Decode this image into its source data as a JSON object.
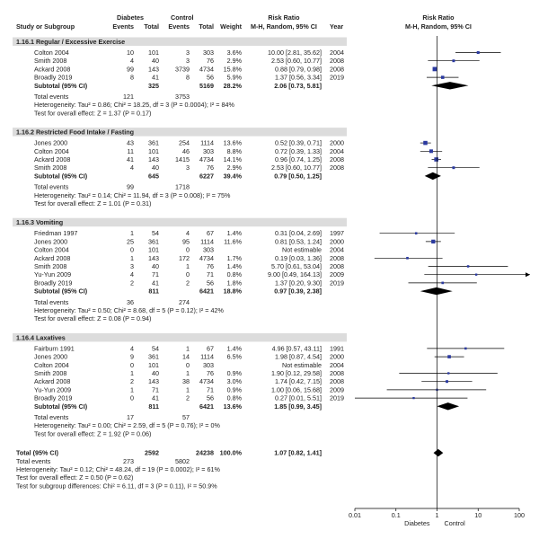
{
  "header": {
    "diabetes": "Diabetes",
    "control": "Control",
    "risk_ratio": "Risk Ratio",
    "risk_ratio_plot": "Risk Ratio",
    "study": "Study or Subgroup",
    "events1": "Events",
    "total1": "Total",
    "events2": "Events",
    "total2": "Total",
    "weight": "Weight",
    "method": "M-H, Random, 95% CI",
    "year": "Year",
    "method_plot": "M-H, Random, 95% CI"
  },
  "axis": {
    "ticks": [
      "0.01",
      "0.1",
      "1",
      "10",
      "100"
    ],
    "left_label": "Diabetes",
    "right_label": "Control"
  },
  "chart_data": {
    "type": "forest",
    "scale": "log",
    "xlim": [
      0.01,
      100
    ],
    "reference_line": 1,
    "subgroups": [
      {
        "title": "1.16.1 Regular / Excessive Exercise",
        "studies": [
          {
            "name": "Colton 2004",
            "e1": "10",
            "n1": "101",
            "e2": "3",
            "n2": "303",
            "weight": "3.6%",
            "ci_text": "10.00 [2.81, 35.62]",
            "year": "2004",
            "rr": 10.0,
            "lo": 2.81,
            "hi": 35.62
          },
          {
            "name": "Smith 2008",
            "e1": "4",
            "n1": "40",
            "e2": "3",
            "n2": "76",
            "weight": "2.9%",
            "ci_text": "2.53 [0.60, 10.77]",
            "year": "2008",
            "rr": 2.53,
            "lo": 0.6,
            "hi": 10.77
          },
          {
            "name": "Ackard 2008",
            "e1": "99",
            "n1": "143",
            "e2": "3739",
            "n2": "4734",
            "weight": "15.8%",
            "ci_text": "0.88 [0.79, 0.98]",
            "year": "2008",
            "rr": 0.88,
            "lo": 0.79,
            "hi": 0.98
          },
          {
            "name": "Broadly 2019",
            "e1": "8",
            "n1": "41",
            "e2": "8",
            "n2": "56",
            "weight": "5.9%",
            "ci_text": "1.37 [0.56, 3.34]",
            "year": "2019",
            "rr": 1.37,
            "lo": 0.56,
            "hi": 3.34
          }
        ],
        "subtotal": {
          "label": "Subtotal (95% CI)",
          "n1": "325",
          "n2": "5169",
          "weight": "28.2%",
          "ci_text": "2.06 [0.73, 5.81]",
          "rr": 2.06,
          "lo": 0.73,
          "hi": 5.81
        },
        "total_events": {
          "label": "Total events",
          "e1": "121",
          "e2": "3753"
        },
        "heterogeneity": "Heterogeneity: Tau² = 0.86; Chi² = 18.25, df = 3 (P = 0.0004); I² = 84%",
        "overall_effect": "Test for overall effect: Z = 1.37 (P = 0.17)"
      },
      {
        "title": "1.16.2 Restricted Food Intake / Fasting",
        "studies": [
          {
            "name": "Jones 2000",
            "e1": "43",
            "n1": "361",
            "e2": "254",
            "n2": "1114",
            "weight": "13.6%",
            "ci_text": "0.52 [0.39, 0.71]",
            "year": "2000",
            "rr": 0.52,
            "lo": 0.39,
            "hi": 0.71
          },
          {
            "name": "Colton 2004",
            "e1": "11",
            "n1": "101",
            "e2": "46",
            "n2": "303",
            "weight": "8.8%",
            "ci_text": "0.72 [0.39, 1.33]",
            "year": "2004",
            "rr": 0.72,
            "lo": 0.39,
            "hi": 1.33
          },
          {
            "name": "Ackard 2008",
            "e1": "41",
            "n1": "143",
            "e2": "1415",
            "n2": "4734",
            "weight": "14.1%",
            "ci_text": "0.96 [0.74, 1.25]",
            "year": "2008",
            "rr": 0.96,
            "lo": 0.74,
            "hi": 1.25
          },
          {
            "name": "Smith 2008",
            "e1": "4",
            "n1": "40",
            "e2": "3",
            "n2": "76",
            "weight": "2.9%",
            "ci_text": "2.53 [0.60, 10.77]",
            "year": "2008",
            "rr": 2.53,
            "lo": 0.6,
            "hi": 10.77
          }
        ],
        "subtotal": {
          "label": "Subtotal (95% CI)",
          "n1": "645",
          "n2": "6227",
          "weight": "39.4%",
          "ci_text": "0.79 [0.50, 1.25]",
          "rr": 0.79,
          "lo": 0.5,
          "hi": 1.25
        },
        "total_events": {
          "label": "Total events",
          "e1": "99",
          "e2": "1718"
        },
        "heterogeneity": "Heterogeneity: Tau² = 0.14; Chi² = 11.94, df = 3 (P = 0.008); I² = 75%",
        "overall_effect": "Test for overall effect: Z = 1.01 (P = 0.31)"
      },
      {
        "title": "1.16.3 Vomiting",
        "studies": [
          {
            "name": "Friedman 1997",
            "e1": "1",
            "n1": "54",
            "e2": "4",
            "n2": "67",
            "weight": "1.4%",
            "ci_text": "0.31 [0.04, 2.69]",
            "year": "1997",
            "rr": 0.31,
            "lo": 0.04,
            "hi": 2.69
          },
          {
            "name": "Jones 2000",
            "e1": "25",
            "n1": "361",
            "e2": "95",
            "n2": "1114",
            "weight": "11.6%",
            "ci_text": "0.81 [0.53, 1.24]",
            "year": "2000",
            "rr": 0.81,
            "lo": 0.53,
            "hi": 1.24
          },
          {
            "name": "Colton 2004",
            "e1": "0",
            "n1": "101",
            "e2": "0",
            "n2": "303",
            "weight": "",
            "ci_text": "Not estimable",
            "year": "2004",
            "rr": null,
            "lo": null,
            "hi": null
          },
          {
            "name": "Ackard 2008",
            "e1": "1",
            "n1": "143",
            "e2": "172",
            "n2": "4734",
            "weight": "1.7%",
            "ci_text": "0.19 [0.03, 1.36]",
            "year": "2008",
            "rr": 0.19,
            "lo": 0.03,
            "hi": 1.36
          },
          {
            "name": "Smith 2008",
            "e1": "3",
            "n1": "40",
            "e2": "1",
            "n2": "76",
            "weight": "1.4%",
            "ci_text": "5.70 [0.61, 53.04]",
            "year": "2008",
            "rr": 5.7,
            "lo": 0.61,
            "hi": 53.04
          },
          {
            "name": "Yu-Yun 2009",
            "e1": "4",
            "n1": "71",
            "e2": "0",
            "n2": "71",
            "weight": "0.8%",
            "ci_text": "9.00 [0.49, 164.13]",
            "year": "2009",
            "rr": 9.0,
            "lo": 0.49,
            "hi": 164.13
          },
          {
            "name": "Broadly 2019",
            "e1": "2",
            "n1": "41",
            "e2": "2",
            "n2": "56",
            "weight": "1.8%",
            "ci_text": "1.37 [0.20, 9.30]",
            "year": "2019",
            "rr": 1.37,
            "lo": 0.2,
            "hi": 9.3
          }
        ],
        "subtotal": {
          "label": "Subtotal (95% CI)",
          "n1": "811",
          "n2": "6421",
          "weight": "18.8%",
          "ci_text": "0.97 [0.39, 2.38]",
          "rr": 0.97,
          "lo": 0.39,
          "hi": 2.38
        },
        "total_events": {
          "label": "Total events",
          "e1": "36",
          "e2": "274"
        },
        "heterogeneity": "Heterogeneity: Tau² = 0.50; Chi² = 8.68, df = 5 (P = 0.12); I² = 42%",
        "overall_effect": "Test for overall effect: Z = 0.08 (P = 0.94)"
      },
      {
        "title": "1.16.4 Laxatives",
        "studies": [
          {
            "name": "Fairburn 1991",
            "e1": "4",
            "n1": "54",
            "e2": "1",
            "n2": "67",
            "weight": "1.4%",
            "ci_text": "4.96 [0.57, 43.11]",
            "year": "1991",
            "rr": 4.96,
            "lo": 0.57,
            "hi": 43.11
          },
          {
            "name": "Jones 2000",
            "e1": "9",
            "n1": "361",
            "e2": "14",
            "n2": "1114",
            "weight": "6.5%",
            "ci_text": "1.98 [0.87, 4.54]",
            "year": "2000",
            "rr": 1.98,
            "lo": 0.87,
            "hi": 4.54
          },
          {
            "name": "Colton 2004",
            "e1": "0",
            "n1": "101",
            "e2": "0",
            "n2": "303",
            "weight": "",
            "ci_text": "Not estimable",
            "year": "2004",
            "rr": null,
            "lo": null,
            "hi": null
          },
          {
            "name": "Smith 2008",
            "e1": "1",
            "n1": "40",
            "e2": "1",
            "n2": "76",
            "weight": "0.9%",
            "ci_text": "1.90 [0.12, 29.58]",
            "year": "2008",
            "rr": 1.9,
            "lo": 0.12,
            "hi": 29.58
          },
          {
            "name": "Ackard 2008",
            "e1": "2",
            "n1": "143",
            "e2": "38",
            "n2": "4734",
            "weight": "3.0%",
            "ci_text": "1.74 [0.42, 7.15]",
            "year": "2008",
            "rr": 1.74,
            "lo": 0.42,
            "hi": 7.15
          },
          {
            "name": "Yu-Yun 2009",
            "e1": "1",
            "n1": "71",
            "e2": "1",
            "n2": "71",
            "weight": "0.9%",
            "ci_text": "1.00 [0.06, 15.68]",
            "year": "2009",
            "rr": 1.0,
            "lo": 0.06,
            "hi": 15.68
          },
          {
            "name": "Broadly 2019",
            "e1": "0",
            "n1": "41",
            "e2": "2",
            "n2": "56",
            "weight": "0.8%",
            "ci_text": "0.27 [0.01, 5.51]",
            "year": "2019",
            "rr": 0.27,
            "lo": 0.01,
            "hi": 5.51
          }
        ],
        "subtotal": {
          "label": "Subtotal (95% CI)",
          "n1": "811",
          "n2": "6421",
          "weight": "13.6%",
          "ci_text": "1.85 [0.99, 3.45]",
          "rr": 1.85,
          "lo": 0.99,
          "hi": 3.45
        },
        "total_events": {
          "label": "Total events",
          "e1": "17",
          "e2": "57"
        },
        "heterogeneity": "Heterogeneity: Tau² = 0.00; Chi² = 2.59, df = 5 (P = 0.76); I² = 0%",
        "overall_effect": "Test for overall effect: Z = 1.92 (P = 0.06)"
      }
    ],
    "overall": {
      "label": "Total (95% CI)",
      "n1": "2592",
      "n2": "24238",
      "weight": "100.0%",
      "ci_text": "1.07 [0.82, 1.41]",
      "rr": 1.07,
      "lo": 0.82,
      "hi": 1.41
    },
    "overall_events": {
      "label": "Total events",
      "e1": "273",
      "e2": "5802"
    },
    "overall_heterogeneity": "Heterogeneity: Tau² = 0.12; Chi² = 48.24, df = 19 (P = 0.0002); I² = 61%",
    "overall_effect": "Test for overall effect: Z = 0.50 (P = 0.62)",
    "subgroup_differences": "Test for subgroup differences: Chi² = 6.11, df = 3 (P = 0.11), I² = 50.9%",
    "colors": {
      "study_marker": "#2b3aa0",
      "summary_diamond": "#000000",
      "line": "#000000",
      "subgroup_title_bg": "#dcdcdc"
    }
  }
}
